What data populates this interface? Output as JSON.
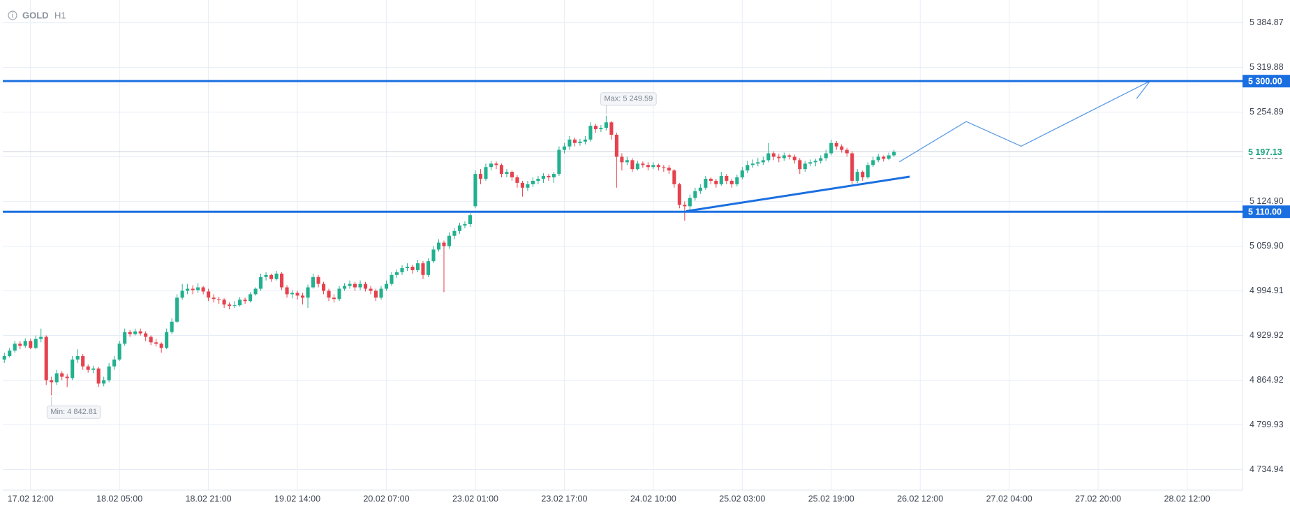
{
  "chart_data": {
    "type": "candlestick",
    "symbol": "GOLD",
    "timeframe": "H1",
    "up_color": "#22b08f",
    "down_color": "#e5424d",
    "grid": true,
    "xlim": [
      -0.3,
      236.6
    ],
    "xticks": [
      {
        "value": 5,
        "label": "17.02 12:00"
      },
      {
        "value": 22,
        "label": "18.02 05:00"
      },
      {
        "value": 39,
        "label": "18.02 21:00"
      },
      {
        "value": 56,
        "label": "19.02 14:00"
      },
      {
        "value": 73,
        "label": "20.02 07:00"
      },
      {
        "value": 90,
        "label": "23.02 01:00"
      },
      {
        "value": 107,
        "label": "23.02 17:00"
      },
      {
        "value": 124,
        "label": "24.02 10:00"
      },
      {
        "value": 141,
        "label": "25.02 03:00"
      },
      {
        "value": 158,
        "label": "25.02 19:00"
      },
      {
        "value": 175,
        "label": "26.02 12:00"
      },
      {
        "value": 192,
        "label": "27.02 04:00"
      },
      {
        "value": 209,
        "label": "27.02 20:00"
      },
      {
        "value": 226,
        "label": "28.02 12:00"
      }
    ],
    "ylim": [
      4705,
      5418
    ],
    "yticks": [
      {
        "value": 5384.87,
        "label": "5 384.87"
      },
      {
        "value": 5319.88,
        "label": "5 319.88"
      },
      {
        "value": 5254.89,
        "label": "5 254.89"
      },
      {
        "value": 5189.9,
        "label": "5 189.90"
      },
      {
        "value": 5124.9,
        "label": "5 124.90"
      },
      {
        "value": 5059.9,
        "label": "5 059.90"
      },
      {
        "value": 4994.91,
        "label": "4 994.91"
      },
      {
        "value": 4929.92,
        "label": "4 929.92"
      },
      {
        "value": 4864.92,
        "label": "4 864.92"
      },
      {
        "value": 4799.93,
        "label": "4 799.93"
      },
      {
        "value": 4734.94,
        "label": "4 734.94"
      }
    ],
    "levels": [
      {
        "value": 5300,
        "label": "5 300.00",
        "color": "#1a6fe0"
      },
      {
        "value": 5110,
        "label": "5 110.00",
        "color": "#1a6fe0"
      }
    ],
    "current_price": {
      "value": 5197.13,
      "label": "5 197.13",
      "color": "#1aa37f"
    },
    "max_label": "Max: 5 249.59",
    "min_label": "Min: 4 842.81",
    "drawings": {
      "trendline": {
        "color": "#1a6fe0",
        "x": [
          130.3,
          173
        ],
        "y": [
          5110.8,
          5161
        ]
      },
      "projection": {
        "color": "#5b9be6",
        "x": [
          171,
          183.8,
          194.3,
          218.9
        ],
        "y": [
          5182.6,
          5241.2,
          5205.3,
          5300
        ]
      }
    },
    "ohlc": [
      [
        4895,
        4905,
        4890,
        4900
      ],
      [
        4900,
        4912,
        4898,
        4908
      ],
      [
        4908,
        4922,
        4905,
        4918
      ],
      [
        4918,
        4922,
        4910,
        4915
      ],
      [
        4915,
        4926,
        4912,
        4922
      ],
      [
        4922,
        4925,
        4910,
        4912
      ],
      [
        4912,
        4930,
        4910,
        4925
      ],
      [
        4925,
        4940,
        4920,
        4928
      ],
      [
        4928,
        4930,
        4858,
        4865
      ],
      [
        4865,
        4870,
        4842.81,
        4862
      ],
      [
        4862,
        4880,
        4858,
        4875
      ],
      [
        4875,
        4878,
        4865,
        4870
      ],
      [
        4870,
        4874,
        4855,
        4868
      ],
      [
        4868,
        4900,
        4865,
        4895
      ],
      [
        4895,
        4910,
        4890,
        4900
      ],
      [
        4900,
        4903,
        4880,
        4885
      ],
      [
        4885,
        4888,
        4876,
        4880
      ],
      [
        4880,
        4886,
        4875,
        4882
      ],
      [
        4882,
        4884,
        4855,
        4860
      ],
      [
        4860,
        4870,
        4856,
        4865
      ],
      [
        4865,
        4890,
        4862,
        4885
      ],
      [
        4885,
        4900,
        4880,
        4895
      ],
      [
        4895,
        4922,
        4893,
        4918
      ],
      [
        4918,
        4940,
        4915,
        4935
      ],
      [
        4935,
        4938,
        4928,
        4932
      ],
      [
        4932,
        4940,
        4930,
        4936
      ],
      [
        4936,
        4940,
        4930,
        4933
      ],
      [
        4933,
        4936,
        4922,
        4928
      ],
      [
        4928,
        4930,
        4916,
        4920
      ],
      [
        4920,
        4925,
        4914,
        4918
      ],
      [
        4918,
        4920,
        4905,
        4912
      ],
      [
        4912,
        4940,
        4910,
        4935
      ],
      [
        4935,
        4955,
        4932,
        4950
      ],
      [
        4950,
        4990,
        4948,
        4985
      ],
      [
        4985,
        5005,
        4982,
        4995
      ],
      [
        4995,
        5005,
        4990,
        4998
      ],
      [
        4998,
        5003,
        4990,
        4996
      ],
      [
        4996,
        5006,
        4992,
        5000
      ],
      [
        5000,
        5002,
        4990,
        4994
      ],
      [
        4994,
        4998,
        4980,
        4985
      ],
      [
        4985,
        4990,
        4978,
        4983
      ],
      [
        4983,
        4986,
        4976,
        4982
      ],
      [
        4982,
        4984,
        4970,
        4975
      ],
      [
        4975,
        4978,
        4968,
        4973
      ],
      [
        4973,
        4980,
        4970,
        4974
      ],
      [
        4974,
        4986,
        4972,
        4982
      ],
      [
        4982,
        4985,
        4976,
        4980
      ],
      [
        4980,
        4993,
        4978,
        4990
      ],
      [
        4990,
        5000,
        4988,
        4998
      ],
      [
        4998,
        5020,
        4995,
        5015
      ],
      [
        5015,
        5022,
        5010,
        5018
      ],
      [
        5018,
        5020,
        5008,
        5012
      ],
      [
        5012,
        5024,
        5010,
        5020
      ],
      [
        5020,
        5022,
        4996,
        5000
      ],
      [
        5000,
        5003,
        4985,
        4990
      ],
      [
        4990,
        4996,
        4984,
        4992
      ],
      [
        4992,
        4995,
        4982,
        4988
      ],
      [
        4988,
        4992,
        4975,
        4985
      ],
      [
        4985,
        5004,
        4970,
        5000
      ],
      [
        5000,
        5020,
        4998,
        5015
      ],
      [
        5015,
        5018,
        5000,
        5005
      ],
      [
        5005,
        5008,
        4990,
        4995
      ],
      [
        4995,
        4998,
        4980,
        4985
      ],
      [
        4985,
        4990,
        4978,
        4983
      ],
      [
        4983,
        5002,
        4980,
        4998
      ],
      [
        4998,
        5006,
        4995,
        5002
      ],
      [
        5002,
        5010,
        4998,
        5005
      ],
      [
        5005,
        5008,
        4995,
        5000
      ],
      [
        5000,
        5010,
        4996,
        5005
      ],
      [
        5005,
        5008,
        4994,
        4998
      ],
      [
        4998,
        5002,
        4990,
        4995
      ],
      [
        4995,
        4998,
        4980,
        4985
      ],
      [
        4985,
        5002,
        4982,
        4998
      ],
      [
        4998,
        5010,
        4995,
        5005
      ],
      [
        5005,
        5022,
        5002,
        5018
      ],
      [
        5018,
        5026,
        5014,
        5022
      ],
      [
        5022,
        5032,
        5018,
        5028
      ],
      [
        5028,
        5035,
        5024,
        5030
      ],
      [
        5030,
        5033,
        5020,
        5025
      ],
      [
        5025,
        5040,
        5022,
        5035
      ],
      [
        5035,
        5038,
        5012,
        5018
      ],
      [
        5018,
        5042,
        5015,
        5038
      ],
      [
        5038,
        5060,
        5035,
        5055
      ],
      [
        5055,
        5070,
        5052,
        5065
      ],
      [
        5065,
        5068,
        4993,
        5060
      ],
      [
        5060,
        5080,
        5056,
        5075
      ],
      [
        5075,
        5086,
        5070,
        5082
      ],
      [
        5082,
        5094,
        5078,
        5090
      ],
      [
        5090,
        5096,
        5086,
        5092
      ],
      [
        5092,
        5108,
        5088,
        5105
      ],
      [
        5118,
        5170,
        5115,
        5165
      ],
      [
        5165,
        5172,
        5150,
        5158
      ],
      [
        5158,
        5180,
        5155,
        5175
      ],
      [
        5175,
        5184,
        5170,
        5180
      ],
      [
        5180,
        5183,
        5172,
        5178
      ],
      [
        5178,
        5180,
        5160,
        5165
      ],
      [
        5165,
        5172,
        5160,
        5168
      ],
      [
        5168,
        5170,
        5155,
        5160
      ],
      [
        5160,
        5163,
        5145,
        5152
      ],
      [
        5152,
        5155,
        5132,
        5145
      ],
      [
        5145,
        5155,
        5140,
        5150
      ],
      [
        5150,
        5160,
        5146,
        5155
      ],
      [
        5155,
        5162,
        5150,
        5158
      ],
      [
        5158,
        5166,
        5152,
        5162
      ],
      [
        5162,
        5165,
        5155,
        5160
      ],
      [
        5160,
        5168,
        5152,
        5165
      ],
      [
        5165,
        5205,
        5162,
        5200
      ],
      [
        5200,
        5210,
        5195,
        5205
      ],
      [
        5205,
        5220,
        5200,
        5215
      ],
      [
        5215,
        5218,
        5205,
        5210
      ],
      [
        5210,
        5216,
        5206,
        5212
      ],
      [
        5212,
        5220,
        5208,
        5215
      ],
      [
        5215,
        5240,
        5212,
        5235
      ],
      [
        5235,
        5238,
        5225,
        5230
      ],
      [
        5230,
        5236,
        5226,
        5232
      ],
      [
        5232,
        5249.59,
        5228,
        5240
      ],
      [
        5240,
        5242,
        5215,
        5222
      ],
      [
        5222,
        5225,
        5145,
        5190
      ],
      [
        5190,
        5195,
        5170,
        5182
      ],
      [
        5182,
        5190,
        5178,
        5185
      ],
      [
        5185,
        5188,
        5168,
        5172
      ],
      [
        5172,
        5184,
        5170,
        5180
      ],
      [
        5180,
        5183,
        5174,
        5178
      ],
      [
        5178,
        5182,
        5170,
        5175
      ],
      [
        5175,
        5182,
        5172,
        5178
      ],
      [
        5178,
        5180,
        5170,
        5175
      ],
      [
        5175,
        5178,
        5168,
        5174
      ],
      [
        5174,
        5178,
        5165,
        5170
      ],
      [
        5170,
        5172,
        5145,
        5150
      ],
      [
        5150,
        5152,
        5115,
        5120
      ],
      [
        5120,
        5125,
        5097,
        5118
      ],
      [
        5118,
        5135,
        5112,
        5130
      ],
      [
        5130,
        5145,
        5126,
        5140
      ],
      [
        5140,
        5150,
        5136,
        5145
      ],
      [
        5145,
        5162,
        5142,
        5158
      ],
      [
        5158,
        5160,
        5150,
        5155
      ],
      [
        5155,
        5158,
        5145,
        5150
      ],
      [
        5150,
        5168,
        5148,
        5162
      ],
      [
        5162,
        5165,
        5150,
        5155
      ],
      [
        5155,
        5158,
        5145,
        5150
      ],
      [
        5150,
        5164,
        5147,
        5160
      ],
      [
        5160,
        5175,
        5157,
        5170
      ],
      [
        5170,
        5184,
        5166,
        5178
      ],
      [
        5178,
        5186,
        5174,
        5180
      ],
      [
        5180,
        5188,
        5176,
        5182
      ],
      [
        5182,
        5190,
        5178,
        5185
      ],
      [
        5185,
        5210,
        5182,
        5195
      ],
      [
        5195,
        5198,
        5185,
        5190
      ],
      [
        5190,
        5194,
        5182,
        5188
      ],
      [
        5188,
        5196,
        5184,
        5192
      ],
      [
        5192,
        5194,
        5186,
        5190
      ],
      [
        5190,
        5193,
        5180,
        5185
      ],
      [
        5185,
        5188,
        5165,
        5172
      ],
      [
        5172,
        5184,
        5168,
        5180
      ],
      [
        5180,
        5186,
        5176,
        5182
      ],
      [
        5182,
        5187,
        5176,
        5184
      ],
      [
        5184,
        5192,
        5180,
        5188
      ],
      [
        5188,
        5200,
        5184,
        5195
      ],
      [
        5195,
        5215,
        5192,
        5210
      ],
      [
        5210,
        5213,
        5200,
        5205
      ],
      [
        5205,
        5208,
        5196,
        5200
      ],
      [
        5200,
        5203,
        5190,
        5195
      ],
      [
        5195,
        5198,
        5150,
        5155
      ],
      [
        5155,
        5172,
        5152,
        5168
      ],
      [
        5168,
        5170,
        5155,
        5160
      ],
      [
        5160,
        5182,
        5158,
        5178
      ],
      [
        5178,
        5190,
        5175,
        5185
      ],
      [
        5185,
        5194,
        5182,
        5190
      ],
      [
        5190,
        5192,
        5183,
        5187
      ],
      [
        5187,
        5196,
        5185,
        5192
      ],
      [
        5192,
        5200,
        5190,
        5197.13
      ]
    ]
  }
}
